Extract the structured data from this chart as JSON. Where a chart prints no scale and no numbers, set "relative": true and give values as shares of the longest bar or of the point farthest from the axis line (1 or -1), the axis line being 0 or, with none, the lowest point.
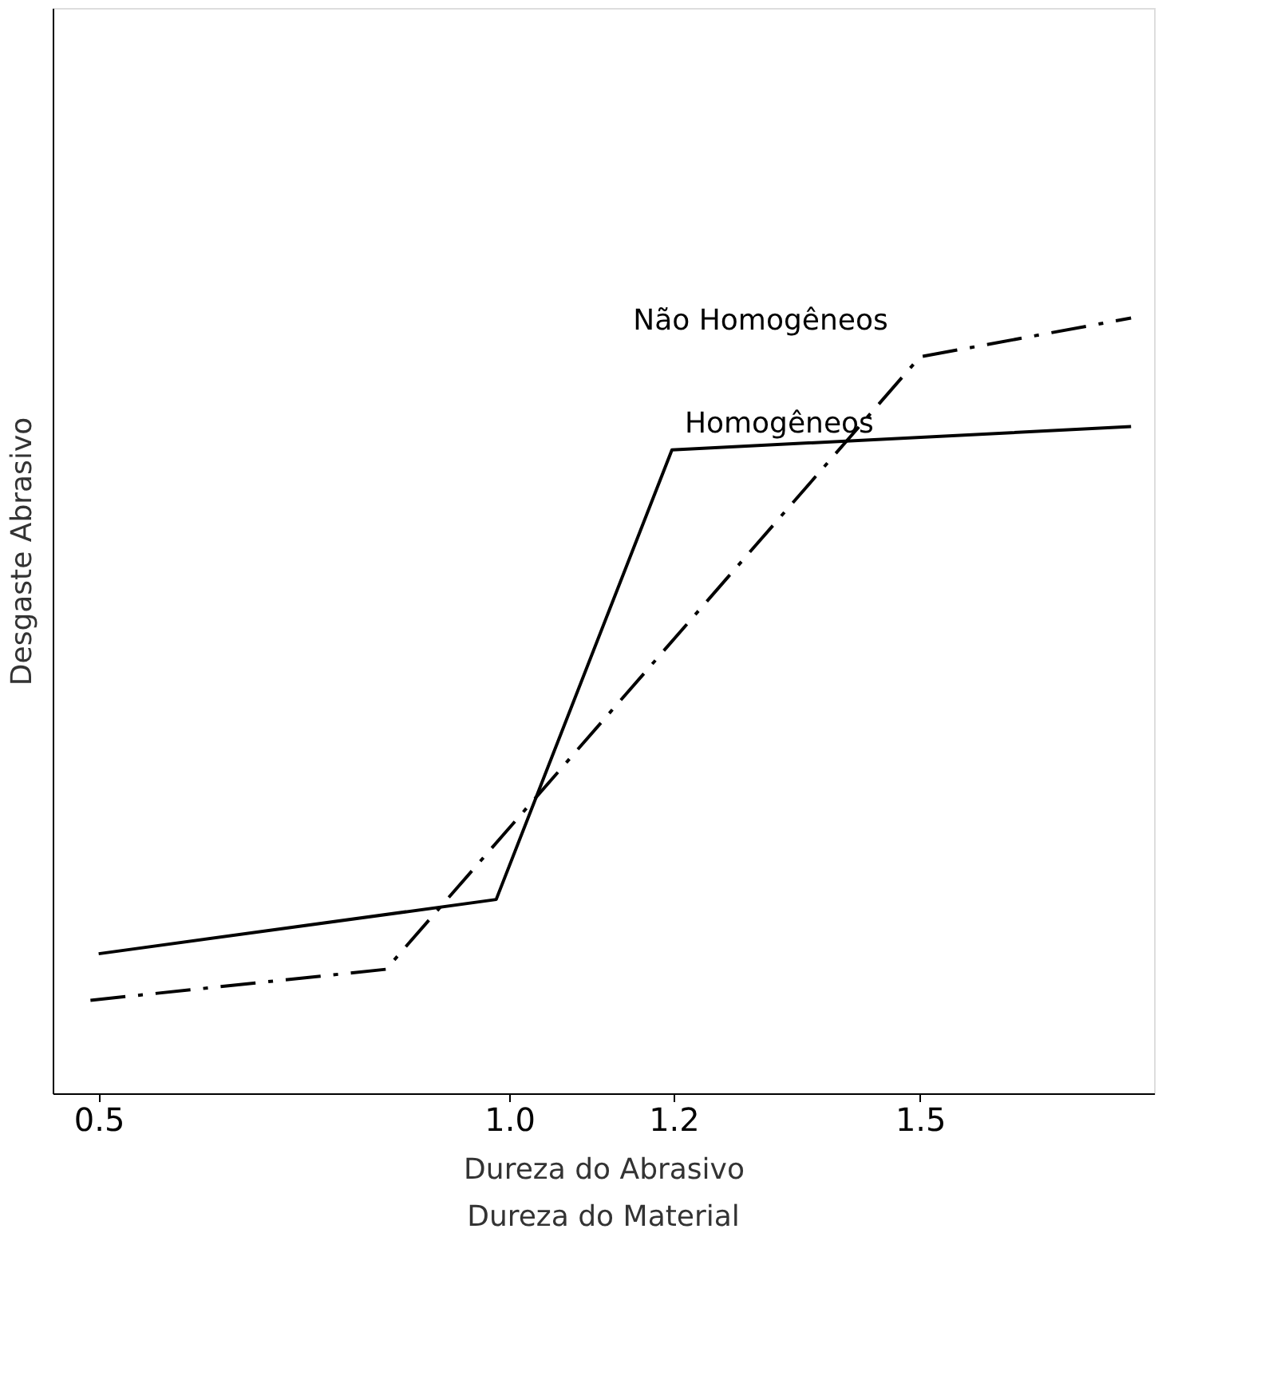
{
  "chart_data": {
    "type": "line",
    "relative": true,
    "xlabel": "Dureza do Abrasivo",
    "ylabel": "Desgaste Abrasivo",
    "annotations": [
      "Dureza do Material"
    ],
    "xlim": [
      0.444,
      1.785
    ],
    "xticks": [
      0.5,
      {
        "value": 1.0,
        "label": "1.0"
      },
      1.2,
      1.5
    ],
    "grid": false,
    "tick_labels": "x",
    "marker": "none",
    "series": [
      {
        "name": "Homogêneos",
        "color": "#000000",
        "line_style": "solid",
        "x": [
          0.5,
          0.984,
          1.198,
          1.757
        ],
        "values": [
          0.18,
          0.25,
          0.83,
          0.86
        ]
      },
      {
        "name": "Não Homogêneos",
        "color": "#000000",
        "line_style": "dashed",
        "x": [
          0.49,
          0.85,
          1.5,
          1.757
        ],
        "values": [
          0.12,
          0.16,
          0.95,
          1.0
        ]
      }
    ]
  }
}
